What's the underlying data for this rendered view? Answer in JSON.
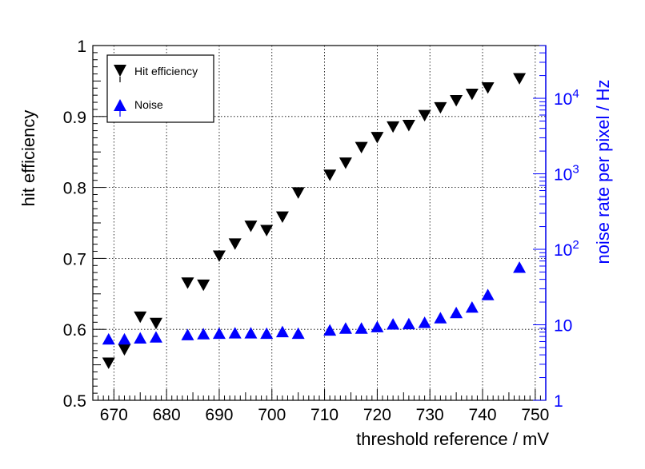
{
  "chart_data": {
    "type": "scatter",
    "xlabel": "threshold reference / mV",
    "ylabel": "hit efficiency",
    "y2label": "noise rate per pixel / Hz",
    "xlim": [
      666,
      752
    ],
    "ylim": [
      0.5,
      1.0
    ],
    "y2lim_log": [
      1,
      50000
    ],
    "grid": true,
    "legend_position": "top-left",
    "x_ticks": [
      "670",
      "680",
      "690",
      "700",
      "710",
      "720",
      "730",
      "740",
      "750"
    ],
    "y_ticks": [
      "0.5",
      "0.6",
      "0.7",
      "0.8",
      "0.9",
      "1"
    ],
    "y2_ticks": [
      "1",
      "10",
      "10^2",
      "10^3",
      "10^4"
    ],
    "colors": {
      "efficiency": "#000000",
      "noise": "#0000ff",
      "axis_right": "#0000ff"
    },
    "series": [
      {
        "name": "Hit efficiency",
        "marker": "triangle-down",
        "axis": "left",
        "points": [
          {
            "x": 669,
            "y": 0.553
          },
          {
            "x": 672,
            "y": 0.572
          },
          {
            "x": 675,
            "y": 0.618
          },
          {
            "x": 678,
            "y": 0.609
          },
          {
            "x": 684,
            "y": 0.666
          },
          {
            "x": 687,
            "y": 0.663
          },
          {
            "x": 690,
            "y": 0.704
          },
          {
            "x": 693,
            "y": 0.721
          },
          {
            "x": 696,
            "y": 0.746
          },
          {
            "x": 699,
            "y": 0.74
          },
          {
            "x": 702,
            "y": 0.759
          },
          {
            "x": 705,
            "y": 0.793
          },
          {
            "x": 711,
            "y": 0.818
          },
          {
            "x": 714,
            "y": 0.835
          },
          {
            "x": 717,
            "y": 0.857
          },
          {
            "x": 720,
            "y": 0.871
          },
          {
            "x": 723,
            "y": 0.886
          },
          {
            "x": 726,
            "y": 0.888
          },
          {
            "x": 729,
            "y": 0.902
          },
          {
            "x": 732,
            "y": 0.913
          },
          {
            "x": 735,
            "y": 0.923
          },
          {
            "x": 738,
            "y": 0.932
          },
          {
            "x": 741,
            "y": 0.941
          },
          {
            "x": 747,
            "y": 0.954
          }
        ]
      },
      {
        "name": "Noise",
        "marker": "triangle-up",
        "axis": "right",
        "points": [
          {
            "x": 669,
            "y": 6.4
          },
          {
            "x": 672,
            "y": 6.4
          },
          {
            "x": 675,
            "y": 6.6
          },
          {
            "x": 678,
            "y": 6.8
          },
          {
            "x": 684,
            "y": 7.3
          },
          {
            "x": 687,
            "y": 7.5
          },
          {
            "x": 690,
            "y": 7.6
          },
          {
            "x": 693,
            "y": 7.7
          },
          {
            "x": 696,
            "y": 7.7
          },
          {
            "x": 699,
            "y": 7.6
          },
          {
            "x": 702,
            "y": 8.0
          },
          {
            "x": 705,
            "y": 7.6
          },
          {
            "x": 711,
            "y": 8.4
          },
          {
            "x": 714,
            "y": 8.9
          },
          {
            "x": 717,
            "y": 8.9
          },
          {
            "x": 720,
            "y": 9.3
          },
          {
            "x": 723,
            "y": 10.1
          },
          {
            "x": 726,
            "y": 10.2
          },
          {
            "x": 729,
            "y": 10.6
          },
          {
            "x": 732,
            "y": 12.2
          },
          {
            "x": 735,
            "y": 14.3
          },
          {
            "x": 738,
            "y": 16.9
          },
          {
            "x": 741,
            "y": 24.7
          },
          {
            "x": 747,
            "y": 57
          }
        ]
      }
    ]
  }
}
